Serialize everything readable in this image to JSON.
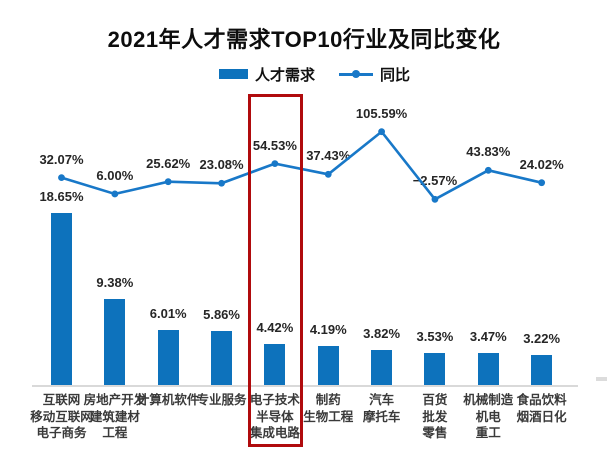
{
  "chart_data": {
    "type": "bar",
    "combo": "bar-and-line",
    "title": "2021年人才需求TOP10行业及同比变化",
    "legend": {
      "bar": "人才需求",
      "line": "同比"
    },
    "categories": [
      [
        "互联网",
        "移动互联网",
        "电子商务"
      ],
      [
        "房地产开发",
        "建筑建材",
        "工程"
      ],
      [
        "计算机软件"
      ],
      [
        "专业服务"
      ],
      [
        "电子技术",
        "半导体",
        "集成电路"
      ],
      [
        "制药",
        "生物工程"
      ],
      [
        "汽车",
        "摩托车"
      ],
      [
        "百货",
        "批发",
        "零售"
      ],
      [
        "机械制造",
        "机电",
        "重工"
      ],
      [
        "食品饮料",
        "烟酒日化"
      ]
    ],
    "series": [
      {
        "name": "人才需求",
        "type": "bar",
        "unit": "%",
        "values": [
          18.65,
          9.38,
          6.01,
          5.86,
          4.42,
          4.19,
          3.82,
          3.53,
          3.47,
          3.22
        ],
        "labels": [
          "18.65%",
          "9.38%",
          "6.01%",
          "5.86%",
          "4.42%",
          "4.19%",
          "3.82%",
          "3.53%",
          "3.47%",
          "3.22%"
        ]
      },
      {
        "name": "同比",
        "type": "line",
        "unit": "%",
        "values": [
          32.07,
          6.0,
          25.62,
          23.08,
          54.53,
          37.43,
          105.59,
          -2.57,
          43.83,
          24.02
        ],
        "labels": [
          "32.07%",
          "6.00%",
          "25.62%",
          "23.08%",
          "54.53%",
          "37.43%",
          "105.59%",
          "−2.57%",
          "43.83%",
          "24.02%"
        ]
      }
    ],
    "highlight": {
      "category": "电子技术 半导体 集成电路",
      "index": 4,
      "style": "red-outline-box"
    },
    "axes": {
      "y_axis_visible": false,
      "gridlines": false,
      "x_baseline_visible": true
    },
    "colors": {
      "bar": "#0d72bc",
      "line": "#1878c8",
      "highlight_box": "#b00b0d",
      "axis_line": "#d9d9d9",
      "value_label": "#262626",
      "category_label": "#3a3a3a"
    }
  }
}
